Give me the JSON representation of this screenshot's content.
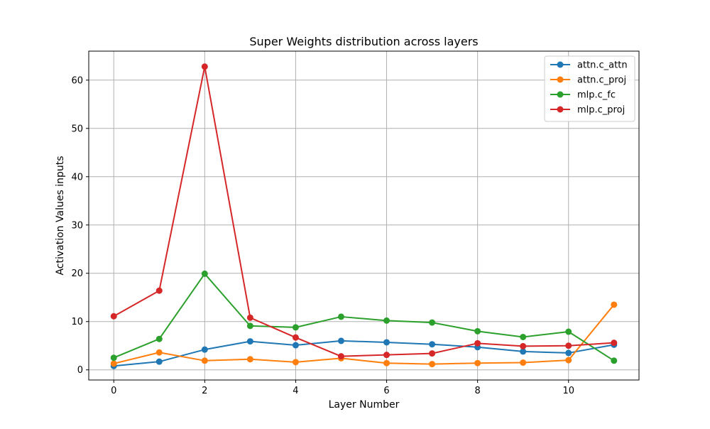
{
  "chart_data": {
    "type": "line",
    "title": "Super Weights distribution across layers",
    "xlabel": "Layer Number",
    "ylabel": "Activation Values inputs",
    "x": [
      0,
      1,
      2,
      3,
      4,
      5,
      6,
      7,
      8,
      9,
      10,
      11
    ],
    "xlim": [
      -0.55,
      11.55
    ],
    "ylim": [
      -2.1,
      66.0
    ],
    "xticks": [
      0,
      2,
      4,
      6,
      8,
      10
    ],
    "yticks": [
      0,
      10,
      20,
      30,
      40,
      50,
      60
    ],
    "grid": true,
    "legend_position": "top-right",
    "series": [
      {
        "name": "attn.c_attn",
        "color": "#1f77b4",
        "values": [
          0.8,
          1.7,
          4.2,
          5.9,
          5.1,
          6.0,
          5.7,
          5.3,
          4.7,
          3.8,
          3.5,
          5.2
        ]
      },
      {
        "name": "attn.c_proj",
        "color": "#ff7f0e",
        "values": [
          1.3,
          3.6,
          1.9,
          2.2,
          1.6,
          2.4,
          1.4,
          1.2,
          1.4,
          1.5,
          2.0,
          13.5
        ]
      },
      {
        "name": "mlp.c_fc",
        "color": "#2ca02c",
        "values": [
          2.5,
          6.4,
          19.9,
          9.1,
          8.8,
          11.0,
          10.2,
          9.8,
          8.0,
          6.8,
          7.9,
          1.9
        ]
      },
      {
        "name": "mlp.c_proj",
        "color": "#d62728",
        "values": [
          11.1,
          16.4,
          62.8,
          10.8,
          6.7,
          2.8,
          3.1,
          3.4,
          5.5,
          4.9,
          5.0,
          5.6
        ]
      }
    ]
  }
}
